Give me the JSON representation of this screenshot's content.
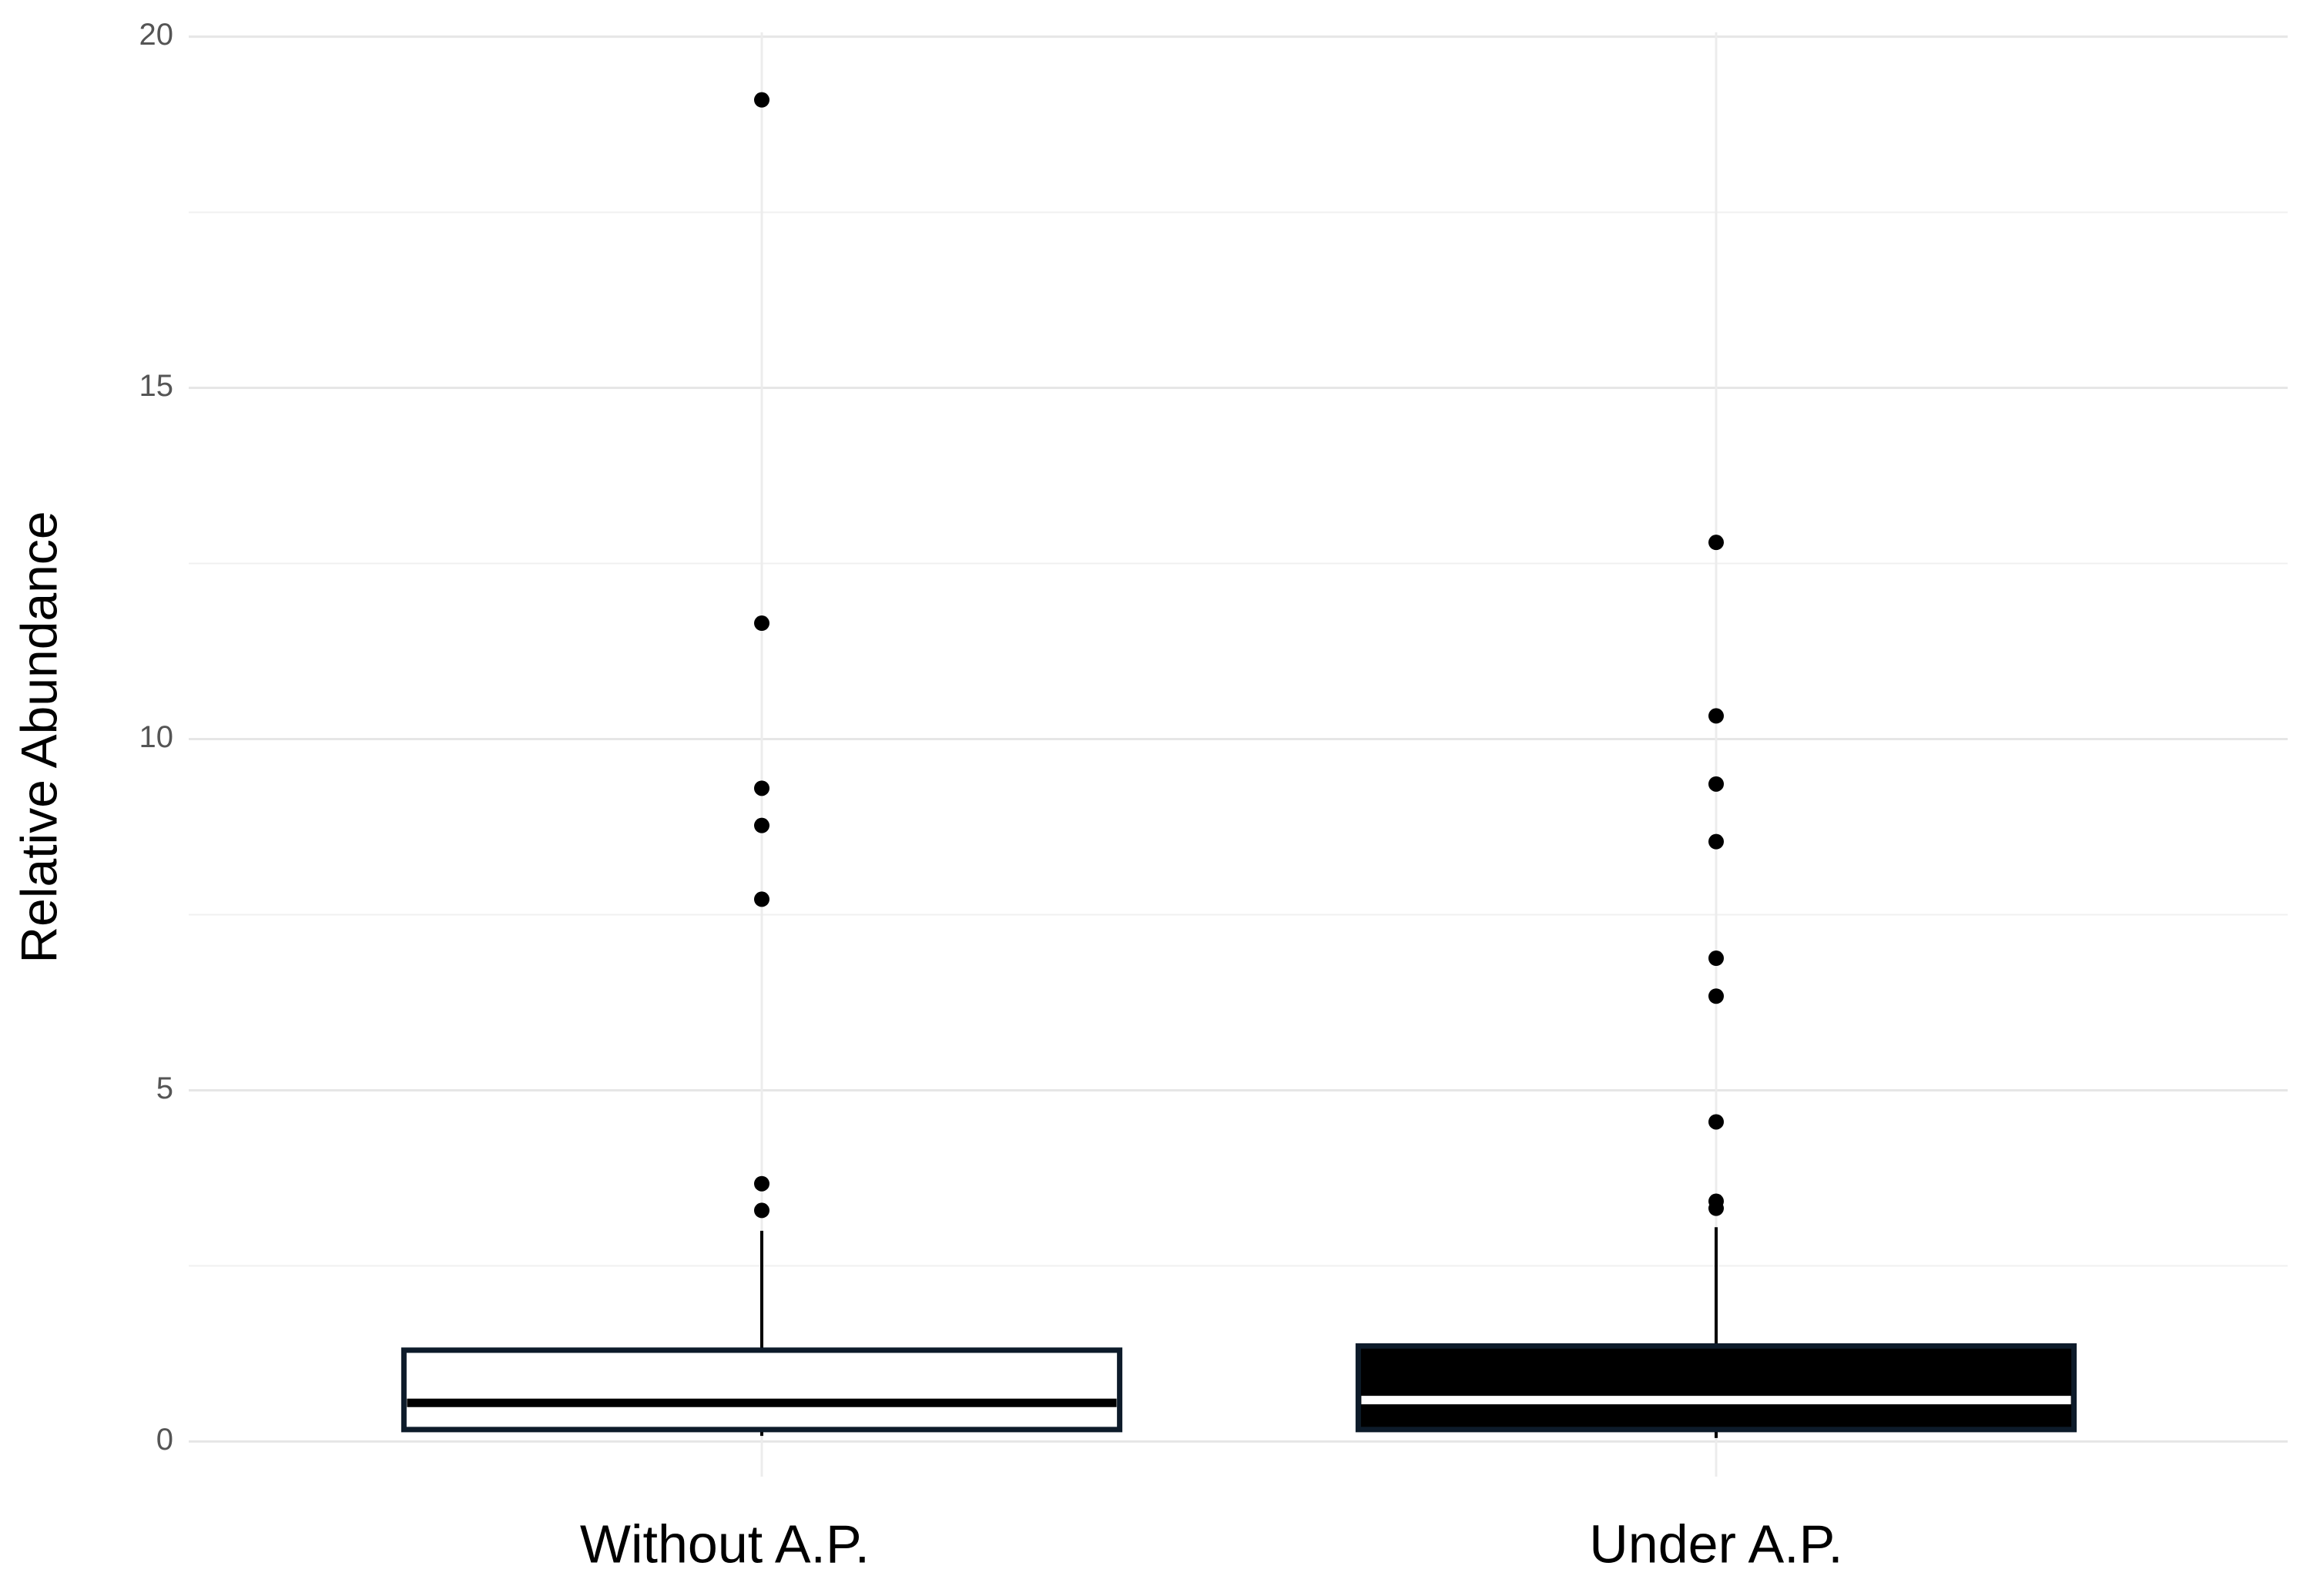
{
  "chart_data": {
    "type": "box",
    "y_label": "Relative Abundance",
    "categories": [
      "Without A.P.",
      "Under A.P."
    ],
    "boxes": [
      {
        "whislo": 0.08,
        "q1": 0.17,
        "med": 0.55,
        "q3": 1.3,
        "whishi": 3.0,
        "fliers": [
          19.1,
          11.65,
          9.3,
          8.77,
          7.72,
          3.67,
          3.29
        ],
        "fill": "#ffffff",
        "median_color": "#000000"
      },
      {
        "whislo": 0.05,
        "q1": 0.17,
        "med": 0.59,
        "q3": 1.36,
        "whishi": 3.05,
        "fliers": [
          12.8,
          10.33,
          9.36,
          8.54,
          6.88,
          6.34,
          4.55,
          3.42,
          3.32
        ],
        "fill": "#000000",
        "median_color": "#ffffff"
      }
    ],
    "box_edge_color": "#0d1b2a",
    "flier_color": "#000000",
    "ylim": [
      -0.5,
      20.5
    ],
    "yticks": [
      0,
      5,
      10,
      15,
      20
    ],
    "grid": true,
    "minor_grid": true
  }
}
